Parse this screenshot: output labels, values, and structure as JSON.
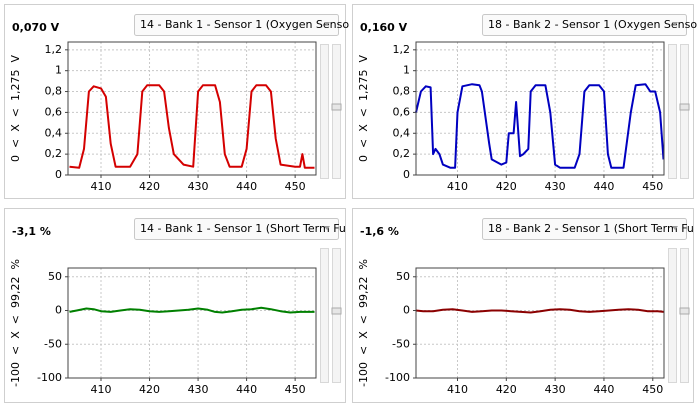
{
  "chart_data": [
    {
      "type": "line",
      "reading": "0,070 V",
      "sensor": "14 - Bank 1 - Sensor 1 (Oxygen Senso",
      "ylabel": "0  <  X  <  1,275  V",
      "color": "#d40000",
      "x": [
        403.5,
        405.5,
        406.5,
        407.5,
        408.5,
        410,
        411,
        412,
        413,
        416,
        417.5,
        418.5,
        419.5,
        422,
        423,
        424,
        425,
        427,
        429,
        430,
        431,
        433.5,
        434.5,
        435.5,
        436.5,
        439,
        440,
        441,
        442,
        444,
        445,
        446,
        447,
        450,
        451,
        451.5,
        452,
        454
      ],
      "values": [
        0.08,
        0.07,
        0.25,
        0.8,
        0.85,
        0.83,
        0.75,
        0.3,
        0.08,
        0.08,
        0.2,
        0.8,
        0.86,
        0.86,
        0.8,
        0.45,
        0.2,
        0.1,
        0.08,
        0.8,
        0.86,
        0.86,
        0.7,
        0.2,
        0.08,
        0.08,
        0.25,
        0.8,
        0.86,
        0.86,
        0.8,
        0.35,
        0.1,
        0.08,
        0.08,
        0.2,
        0.07,
        0.07
      ],
      "xlim": [
        403.2,
        454.3
      ],
      "xticks": [
        410,
        420,
        430,
        440,
        450
      ],
      "ylim": [
        0,
        1.275
      ],
      "yticks": [
        0,
        {
          "value": 0.2,
          "label": "0,2"
        },
        {
          "value": 0.4,
          "label": "0,4"
        },
        {
          "value": 0.6,
          "label": "0,6"
        },
        {
          "value": 0.8,
          "label": "0,8"
        },
        1,
        {
          "value": 1.2,
          "label": "1,2"
        }
      ],
      "grid": true
    },
    {
      "type": "line",
      "reading": "0,160 V",
      "sensor": "18 - Bank 2 - Sensor 1 (Oxygen Senso",
      "ylabel": "0  <  X  <  1,275  V",
      "color": "#0000c0",
      "x": [
        401.5,
        402.5,
        403.5,
        404.5,
        405,
        405.5,
        406.3,
        407,
        408.5,
        409.5,
        410,
        411,
        413,
        414.5,
        415,
        416.5,
        417,
        419,
        420,
        420.5,
        421.5,
        422,
        422.8,
        423.5,
        424.5,
        425,
        426,
        428,
        429,
        430,
        431,
        434,
        435,
        436,
        437,
        439,
        440,
        440.8,
        441.5,
        444,
        445.5,
        446.5,
        448.5,
        449.5,
        450.5,
        451.5,
        452.2
      ],
      "values": [
        0.6,
        0.8,
        0.85,
        0.84,
        0.2,
        0.25,
        0.2,
        0.1,
        0.07,
        0.07,
        0.6,
        0.85,
        0.87,
        0.86,
        0.8,
        0.3,
        0.15,
        0.1,
        0.12,
        0.4,
        0.4,
        0.7,
        0.18,
        0.2,
        0.25,
        0.8,
        0.86,
        0.86,
        0.6,
        0.1,
        0.07,
        0.07,
        0.2,
        0.8,
        0.86,
        0.86,
        0.8,
        0.2,
        0.07,
        0.07,
        0.6,
        0.86,
        0.87,
        0.8,
        0.8,
        0.6,
        0.15
      ],
      "xlim": [
        401.5,
        452.3
      ],
      "xticks": [
        410,
        420,
        430,
        440,
        450
      ],
      "ylim": [
        0,
        1.275
      ],
      "yticks": [
        0,
        {
          "value": 0.2,
          "label": "0,2"
        },
        {
          "value": 0.4,
          "label": "0,4"
        },
        {
          "value": 0.6,
          "label": "0,6"
        },
        {
          "value": 0.8,
          "label": "0,8"
        },
        1,
        {
          "value": 1.2,
          "label": "1,2"
        }
      ],
      "grid": true
    },
    {
      "type": "line",
      "reading": "-3,1 %",
      "sensor": "14 - Bank 1 - Sensor 1 (Short Term Fu",
      "ylabel": "-100  <  X  <  99,22  %",
      "color": "#008000",
      "x": [
        403.5,
        405,
        407,
        408.5,
        410,
        412,
        414,
        416,
        418,
        420,
        422,
        424,
        426,
        428,
        430,
        432,
        433.5,
        435,
        437,
        439,
        441,
        443,
        445,
        447,
        449,
        451,
        454
      ],
      "values": [
        -2,
        0,
        3,
        2,
        -1,
        -2,
        0,
        2,
        1,
        -1,
        -2,
        -1,
        0,
        1,
        3,
        1,
        -2,
        -3,
        -1,
        1,
        2,
        4,
        2,
        -1,
        -3,
        -2,
        -2
      ],
      "xlim": [
        403.2,
        454.3
      ],
      "xticks": [
        410,
        420,
        430,
        440,
        450
      ],
      "ylim": [
        -100,
        63
      ],
      "yticks": [
        -100,
        -50,
        0,
        50
      ],
      "grid": true
    },
    {
      "type": "line",
      "reading": "-1,6 %",
      "sensor": "18 - Bank 2 - Sensor 1 (Short Term Fu",
      "ylabel": "-100  <  X  <  99,22  %",
      "color": "#8b0000",
      "x": [
        401.5,
        403,
        405,
        407,
        409,
        411,
        413,
        415,
        417,
        419,
        421,
        423,
        425,
        427,
        429,
        431,
        433,
        435,
        437,
        439,
        441,
        443,
        445,
        447,
        449,
        451,
        452.3
      ],
      "values": [
        0,
        -1,
        -1,
        1,
        2,
        0,
        -2,
        -1,
        0,
        0,
        -1,
        -2,
        -3,
        -1,
        1,
        2,
        1,
        -1,
        -2,
        -1,
        0,
        1,
        2,
        1,
        -1,
        -1,
        -2
      ],
      "xlim": [
        401.5,
        452.3
      ],
      "xticks": [
        410,
        420,
        430,
        440,
        450
      ],
      "ylim": [
        -100,
        63
      ],
      "yticks": [
        -100,
        -50,
        0,
        50
      ],
      "grid": true
    }
  ]
}
